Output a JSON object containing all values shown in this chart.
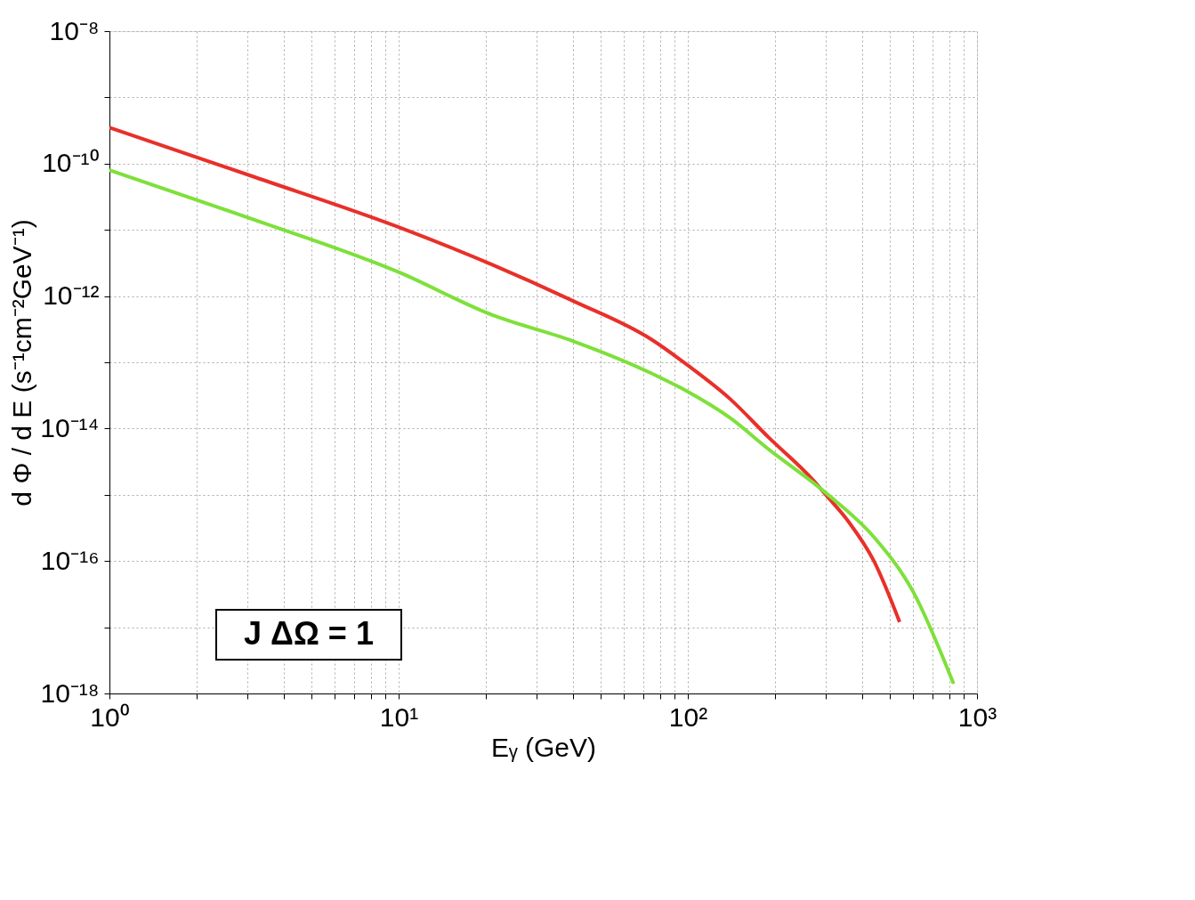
{
  "chart_data": {
    "type": "line",
    "xlabel": "Eᵧ    (GeV)",
    "ylabel": "d Φ / d E (s⁻¹cm⁻²GeV⁻¹)",
    "log": "xy",
    "grid": true,
    "line_style": "solid",
    "marker": "none",
    "xlim": [
      1,
      1000
    ],
    "ylim": [
      1e-18,
      1e-08
    ],
    "xticks": [
      {
        "value": 1,
        "label": "10⁰"
      },
      {
        "value": 2,
        "label": null
      },
      {
        "value": 3,
        "label": null
      },
      {
        "value": 4,
        "label": null
      },
      {
        "value": 5,
        "label": null
      },
      {
        "value": 6,
        "label": null
      },
      {
        "value": 7,
        "label": null
      },
      {
        "value": 8,
        "label": null
      },
      {
        "value": 9,
        "label": null
      },
      {
        "value": 10,
        "label": "10¹"
      },
      {
        "value": 20,
        "label": null
      },
      {
        "value": 30,
        "label": null
      },
      {
        "value": 40,
        "label": null
      },
      {
        "value": 50,
        "label": null
      },
      {
        "value": 60,
        "label": null
      },
      {
        "value": 70,
        "label": null
      },
      {
        "value": 80,
        "label": null
      },
      {
        "value": 90,
        "label": null
      },
      {
        "value": 100,
        "label": "10²"
      },
      {
        "value": 200,
        "label": null
      },
      {
        "value": 300,
        "label": null
      },
      {
        "value": 400,
        "label": null
      },
      {
        "value": 500,
        "label": null
      },
      {
        "value": 600,
        "label": null
      },
      {
        "value": 700,
        "label": null
      },
      {
        "value": 800,
        "label": null
      },
      {
        "value": 900,
        "label": null
      },
      {
        "value": 1000,
        "label": "10³"
      }
    ],
    "yticks": [
      {
        "value": 1e-18,
        "label": "10⁻¹⁸"
      },
      {
        "value": 1e-17,
        "label": null
      },
      {
        "value": 1e-16,
        "label": "10⁻¹⁶"
      },
      {
        "value": 1e-15,
        "label": null
      },
      {
        "value": 1e-14,
        "label": "10⁻¹⁴"
      },
      {
        "value": 1e-13,
        "label": null
      },
      {
        "value": 1e-12,
        "label": "10⁻¹²"
      },
      {
        "value": 1e-11,
        "label": null
      },
      {
        "value": 1e-10,
        "label": "10⁻¹⁰"
      },
      {
        "value": 1e-09,
        "label": null
      },
      {
        "value": 1e-08,
        "label": "10⁻⁸"
      }
    ],
    "annotations": [
      "J ΔΩ = 1"
    ],
    "series": [
      {
        "color": "#e8302a",
        "x": [
          1,
          3.2,
          10,
          21,
          40,
          75,
          100,
          140,
          190,
          270,
          300,
          360,
          440,
          540
        ],
        "values": [
          3.5e-10,
          6.2e-11,
          1.1e-11,
          3e-12,
          8.5e-13,
          2.2e-13,
          9e-14,
          2.8e-14,
          7.4e-15,
          1.7e-15,
          1e-15,
          3.9e-16,
          1e-16,
          1.2e-17
        ]
      },
      {
        "color": "#7ee03a",
        "x": [
          1,
          3.2,
          10,
          21,
          40,
          75,
          100,
          140,
          190,
          300,
          440,
          600,
          830
        ],
        "values": [
          8e-11,
          1.4e-11,
          2.3e-12,
          5.2e-13,
          2.1e-13,
          6.8e-14,
          3.6e-14,
          1.45e-14,
          4.9e-15,
          1.07e-15,
          2.3e-16,
          3.5e-17,
          1.4e-18
        ]
      }
    ]
  }
}
